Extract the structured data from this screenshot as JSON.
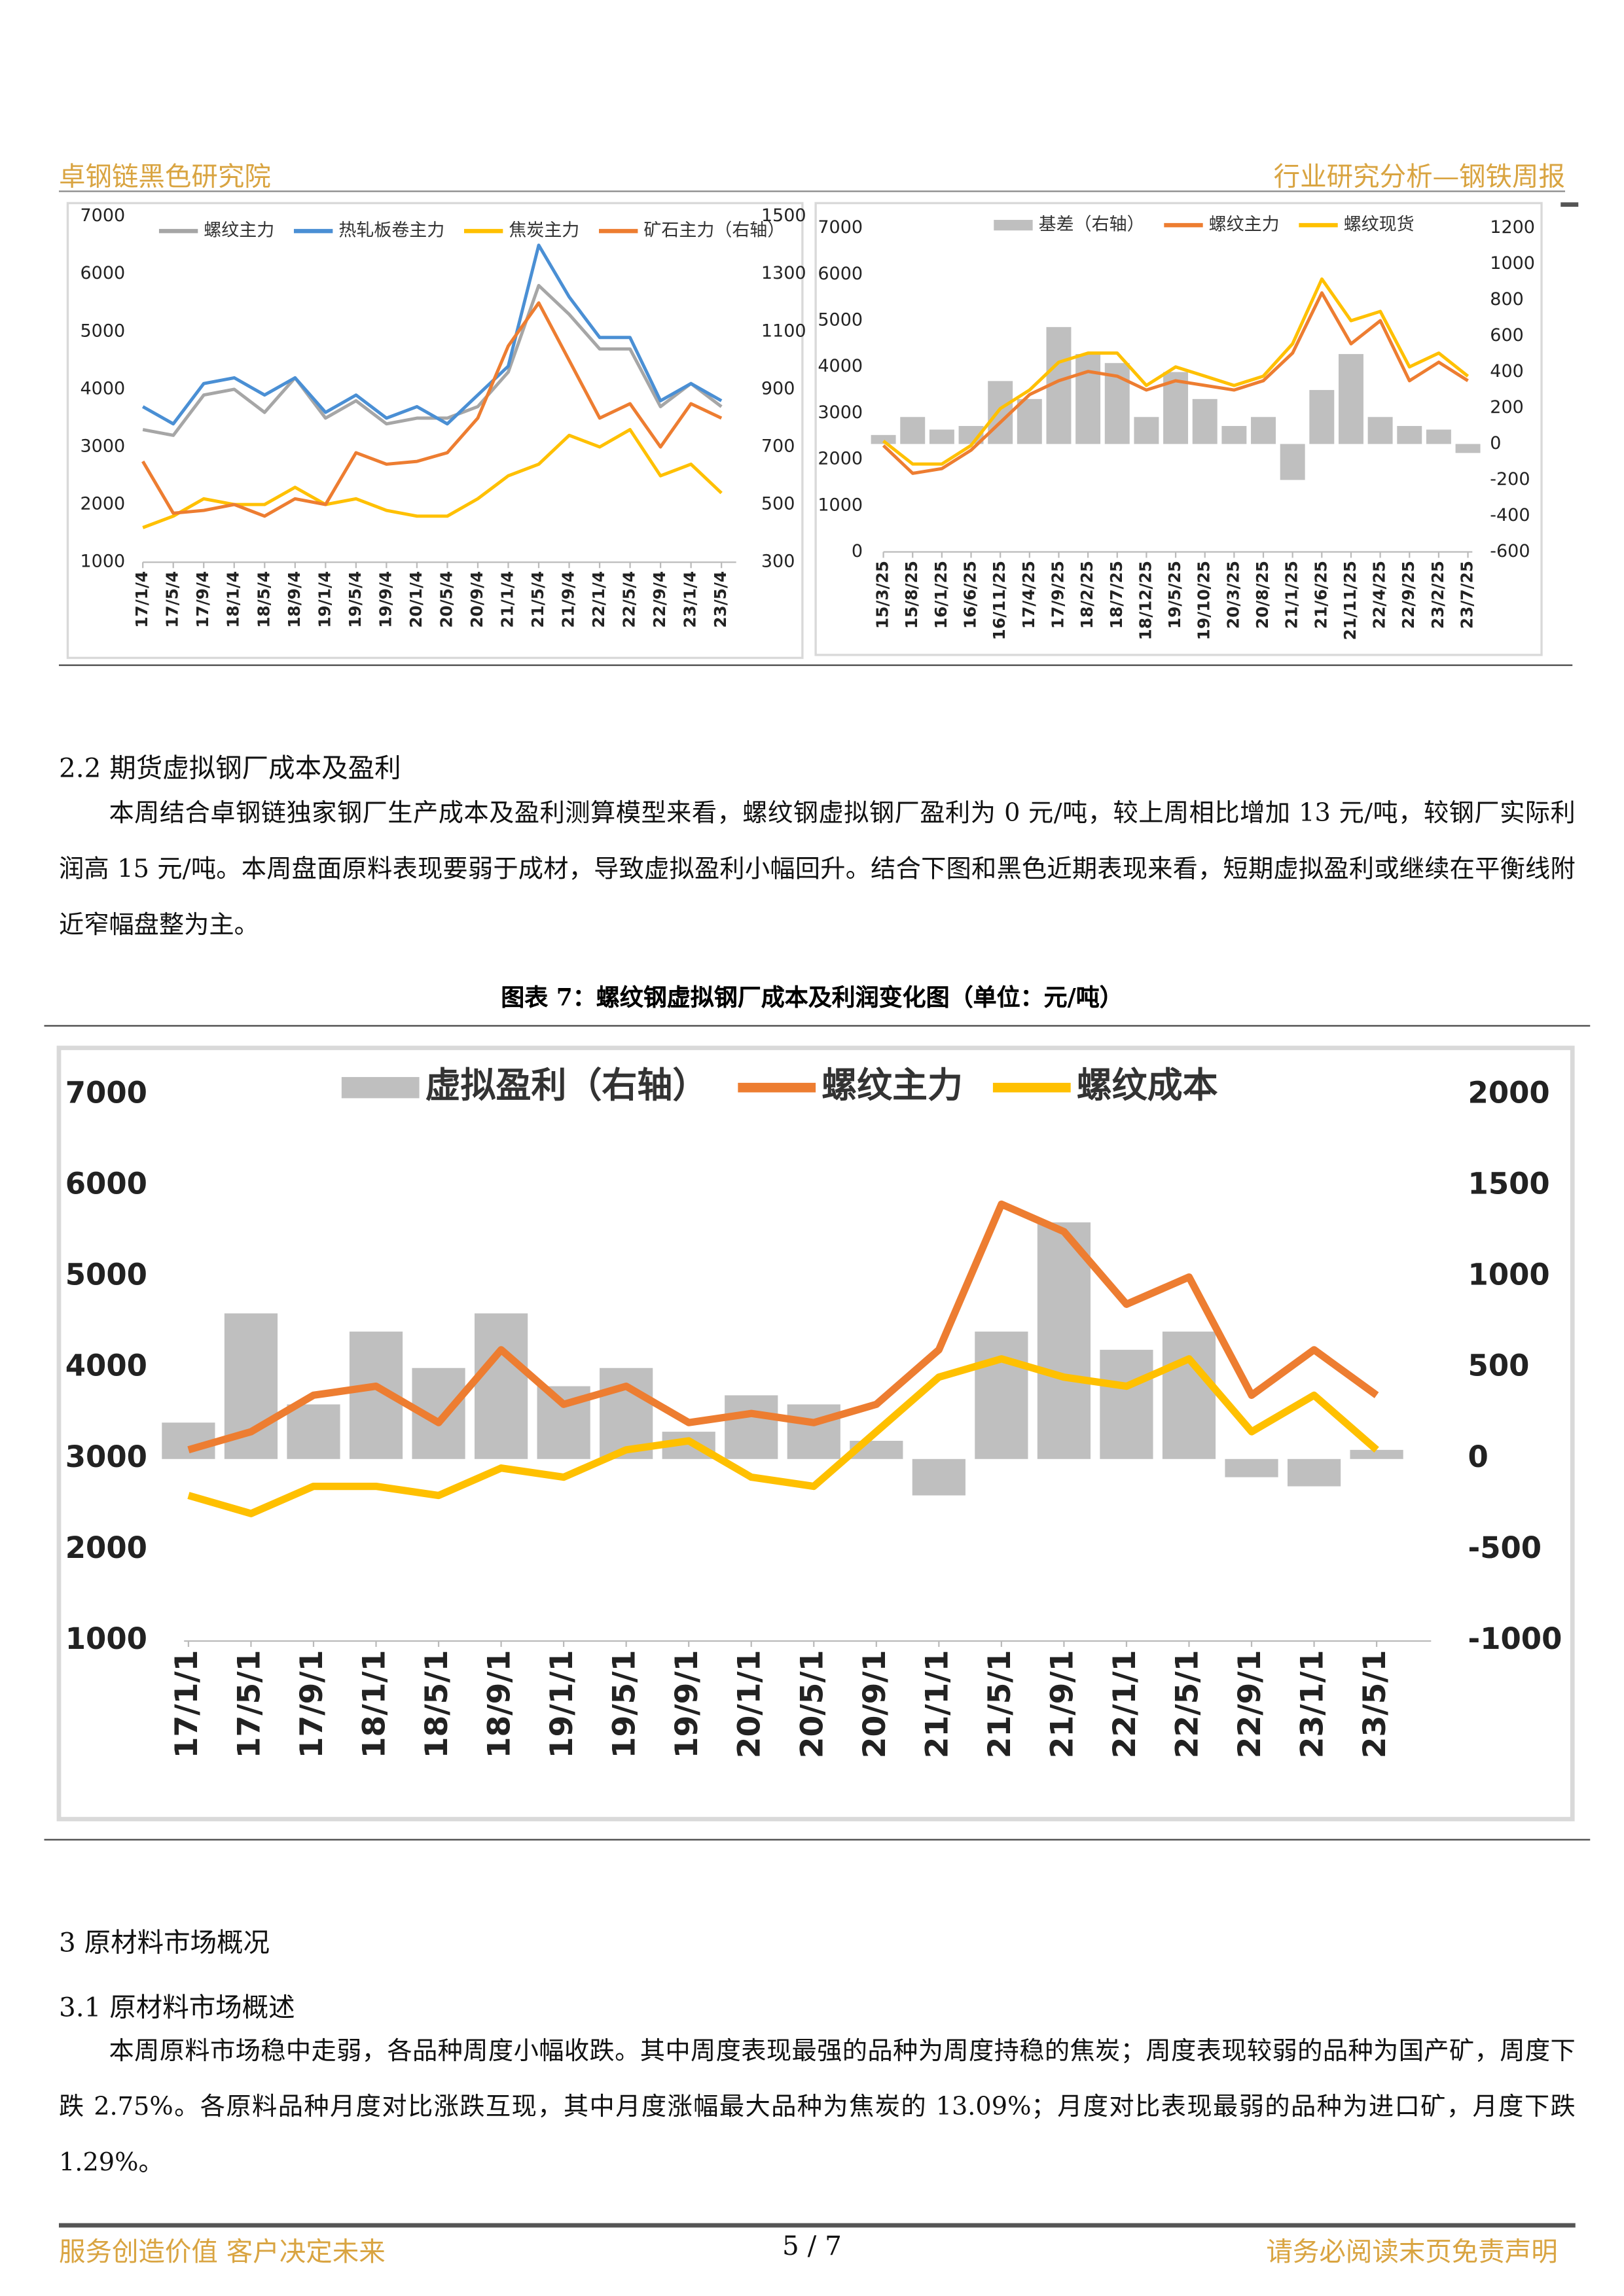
{
  "header": {
    "left": "卓钢链黑色研究院",
    "right": "行业研究分析—钢铁周报"
  },
  "chart_data": [
    {
      "type": "line",
      "categories": [
        "17/1/4",
        "17/5/4",
        "17/9/4",
        "18/1/4",
        "18/5/4",
        "18/9/4",
        "19/1/4",
        "19/5/4",
        "19/9/4",
        "20/1/4",
        "20/5/4",
        "20/9/4",
        "21/1/4",
        "21/5/4",
        "21/9/4",
        "22/1/4",
        "22/5/4",
        "22/9/4",
        "23/1/4",
        "23/5/4"
      ],
      "series": [
        {
          "name": "螺纹主力",
          "color": "#a6a6a6",
          "values": [
            3300,
            3200,
            3900,
            4000,
            3600,
            4200,
            3500,
            3800,
            3400,
            3500,
            3500,
            3700,
            4300,
            5800,
            5300,
            4700,
            4700,
            3700,
            4100,
            3700
          ]
        },
        {
          "name": "热轧板卷主力",
          "color": "#4a8fd4",
          "values": [
            3700,
            3400,
            4100,
            4200,
            3900,
            4200,
            3600,
            3900,
            3500,
            3700,
            3400,
            3900,
            4400,
            6500,
            5600,
            4900,
            4900,
            3800,
            4100,
            3800
          ]
        },
        {
          "name": "焦炭主力",
          "color": "#ffc000",
          "values": [
            1600,
            1800,
            2100,
            2000,
            2000,
            2300,
            2000,
            2100,
            1900,
            1800,
            1800,
            2100,
            2500,
            2700,
            3200,
            3000,
            3300,
            2500,
            2700,
            2200
          ]
        },
        {
          "name": "矿石主力（右轴）",
          "color": "#ed7d31",
          "axis": "y2",
          "values": [
            650,
            470,
            480,
            500,
            460,
            520,
            500,
            680,
            640,
            650,
            680,
            800,
            1050,
            1200,
            1000,
            800,
            850,
            700,
            850,
            800
          ]
        }
      ],
      "ylim": [
        1000,
        7000
      ],
      "yticks": [
        1000,
        2000,
        3000,
        4000,
        5000,
        6000,
        7000
      ],
      "y2lim": [
        300,
        1500
      ],
      "y2ticks": [
        300,
        500,
        700,
        900,
        1100,
        1300,
        1500
      ],
      "legend": "top"
    },
    {
      "type": "line",
      "categories": [
        "15/3/25",
        "15/8/25",
        "16/1/25",
        "16/6/25",
        "16/11/25",
        "17/4/25",
        "17/9/25",
        "18/2/25",
        "18/7/25",
        "18/12/25",
        "19/5/25",
        "19/10/25",
        "20/3/25",
        "20/8/25",
        "21/1/25",
        "21/6/25",
        "21/11/25",
        "22/4/25",
        "22/9/25",
        "23/2/25",
        "23/7/25"
      ],
      "series": [
        {
          "name": "基差（右轴）",
          "color": "#bfbfbf",
          "type": "bar",
          "axis": "y2",
          "values": [
            50,
            150,
            80,
            100,
            350,
            250,
            650,
            500,
            450,
            150,
            400,
            250,
            100,
            150,
            -200,
            300,
            500,
            150,
            100,
            80,
            -50
          ]
        },
        {
          "name": "螺纹主力",
          "color": "#ed7d31",
          "values": [
            2300,
            1700,
            1800,
            2200,
            2800,
            3400,
            3700,
            3900,
            3800,
            3500,
            3700,
            3600,
            3500,
            3700,
            4300,
            5600,
            4500,
            5000,
            3700,
            4100,
            3700
          ]
        },
        {
          "name": "螺纹现货",
          "color": "#ffc000",
          "values": [
            2400,
            1900,
            1900,
            2300,
            3100,
            3500,
            4100,
            4300,
            4300,
            3600,
            4000,
            3800,
            3600,
            3800,
            4500,
            5900,
            5000,
            5200,
            4000,
            4300,
            3800
          ]
        }
      ],
      "ylim": [
        0,
        7000
      ],
      "yticks": [
        0,
        1000,
        2000,
        3000,
        4000,
        5000,
        6000,
        7000
      ],
      "y2lim": [
        -600,
        1200
      ],
      "y2ticks": [
        -600,
        -400,
        -200,
        0,
        200,
        400,
        600,
        800,
        1000,
        1200
      ],
      "legend": "top"
    },
    {
      "type": "line",
      "categories": [
        "17/1/1",
        "17/5/1",
        "17/9/1",
        "18/1/1",
        "18/5/1",
        "18/9/1",
        "19/1/1",
        "19/5/1",
        "19/9/1",
        "20/1/1",
        "20/5/1",
        "20/9/1",
        "21/1/1",
        "21/5/1",
        "21/9/1",
        "22/1/1",
        "22/5/1",
        "22/9/1",
        "23/1/1",
        "23/5/1"
      ],
      "series": [
        {
          "name": "虚拟盈利（右轴）",
          "color": "#bfbfbf",
          "type": "bar",
          "axis": "y2",
          "values": [
            200,
            800,
            300,
            700,
            500,
            800,
            400,
            500,
            150,
            350,
            300,
            100,
            -200,
            700,
            1300,
            600,
            700,
            -100,
            -150,
            50
          ]
        },
        {
          "name": "螺纹主力",
          "color": "#ed7d31",
          "values": [
            3100,
            3300,
            3700,
            3800,
            3400,
            4200,
            3600,
            3800,
            3400,
            3500,
            3400,
            3600,
            4200,
            5800,
            5500,
            4700,
            5000,
            3700,
            4200,
            3700
          ]
        },
        {
          "name": "螺纹成本",
          "color": "#ffc000",
          "values": [
            2600,
            2400,
            2700,
            2700,
            2600,
            2900,
            2800,
            3100,
            3200,
            2800,
            2700,
            3300,
            3900,
            4100,
            3900,
            3800,
            4100,
            3300,
            3700,
            3100
          ]
        }
      ],
      "ylim": [
        1000,
        7000
      ],
      "yticks": [
        1000,
        2000,
        3000,
        4000,
        5000,
        6000,
        7000
      ],
      "y2lim": [
        -1000,
        2000
      ],
      "y2ticks": [
        -1000,
        -500,
        0,
        500,
        1000,
        1500,
        2000
      ],
      "legend": "top"
    }
  ],
  "section_2_2": {
    "heading": "2.2 期货虚拟钢厂成本及盈利",
    "paragraph": "本周结合卓钢链独家钢厂生产成本及盈利测算模型来看，螺纹钢虚拟钢厂盈利为 0 元/吨，较上周相比增加 13 元/吨，较钢厂实际利润高 15 元/吨。本周盘面原料表现要弱于成材，导致虚拟盈利小幅回升。结合下图和黑色近期表现来看，短期虚拟盈利或继续在平衡线附近窄幅盘整为主。",
    "caption": "图表 7：螺纹钢虚拟钢厂成本及利润变化图（单位：元/吨）"
  },
  "section_3": {
    "heading": "3 原材料市场概况",
    "sub_heading": "3.1 原材料市场概述",
    "paragraph": "本周原料市场稳中走弱，各品种周度小幅收跌。其中周度表现最强的品种为周度持稳的焦炭；周度表现较弱的品种为国产矿，周度下跌 2.75%。各原料品种月度对比涨跌互现，其中月度涨幅最大品种为焦炭的 13.09%；月度对比表现最弱的品种为进口矿，月度下跌 1.29%。"
  },
  "footer": {
    "left": "服务创造价值  客户决定未来",
    "page": "5 / 7",
    "right": "请务必阅读末页免责声明"
  }
}
